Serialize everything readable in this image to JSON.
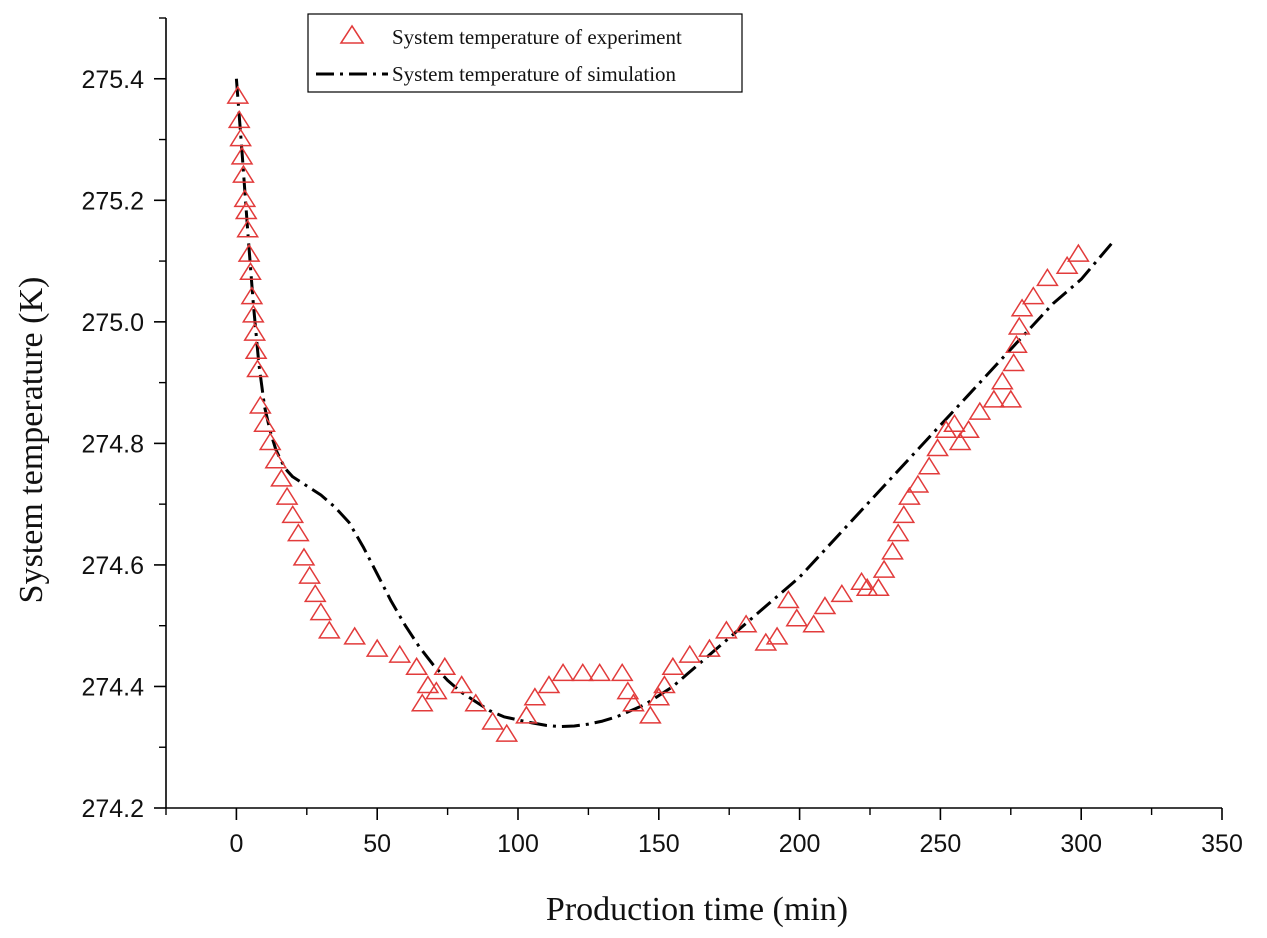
{
  "chart_data": {
    "type": "scatter",
    "title": "",
    "xlabel": "Production time (min)",
    "ylabel": "System temperature (K)",
    "xlim": [
      -25,
      350
    ],
    "ylim": [
      274.2,
      275.5
    ],
    "xticks": [
      0,
      50,
      100,
      150,
      200,
      250,
      300,
      350
    ],
    "yticks": [
      274.2,
      274.4,
      274.6,
      274.8,
      275.0,
      275.2,
      275.4
    ],
    "xtick_labels": [
      "0",
      "50",
      "100",
      "150",
      "200",
      "250",
      "300",
      "350"
    ],
    "ytick_labels": [
      "274.2",
      "274.4",
      "274.6",
      "274.8",
      "275.0",
      "275.2",
      "275.4"
    ],
    "legend_position": "top-center",
    "colors": {
      "experiment": "#e23b3b",
      "simulation": "#000000",
      "axis": "#000000"
    },
    "series": [
      {
        "name": "System temperature of experiment",
        "marker": "triangle-open",
        "color": "#e23b3b",
        "x": [
          0.5,
          1,
          1.5,
          2,
          2.5,
          3,
          3.5,
          4,
          4.5,
          5,
          5.5,
          6,
          6.5,
          7,
          7.5,
          8.5,
          10,
          12,
          14,
          16,
          18,
          20,
          22,
          24,
          26,
          28,
          30,
          33,
          42,
          50,
          58,
          64,
          66,
          68,
          71,
          74,
          80,
          85,
          91,
          96,
          103,
          106,
          111,
          116,
          123,
          129,
          137,
          139,
          141,
          147,
          150,
          152,
          155,
          161,
          168,
          174,
          181,
          188,
          192,
          196,
          199,
          205,
          209,
          215,
          222,
          224,
          228,
          230,
          233,
          235,
          237,
          239,
          242,
          246,
          249,
          252,
          255,
          257,
          260,
          264,
          269,
          272,
          275,
          276,
          277,
          278,
          279,
          283,
          288,
          295,
          299
        ],
        "y": [
          275.37,
          275.33,
          275.3,
          275.27,
          275.24,
          275.2,
          275.18,
          275.15,
          275.11,
          275.08,
          275.04,
          275.01,
          274.98,
          274.95,
          274.92,
          274.86,
          274.83,
          274.8,
          274.77,
          274.74,
          274.71,
          274.68,
          274.65,
          274.61,
          274.58,
          274.55,
          274.52,
          274.49,
          274.48,
          274.46,
          274.45,
          274.43,
          274.37,
          274.4,
          274.39,
          274.43,
          274.4,
          274.37,
          274.34,
          274.32,
          274.35,
          274.38,
          274.4,
          274.42,
          274.42,
          274.42,
          274.42,
          274.39,
          274.37,
          274.35,
          274.38,
          274.4,
          274.43,
          274.45,
          274.46,
          274.49,
          274.5,
          274.47,
          274.48,
          274.54,
          274.51,
          274.5,
          274.53,
          274.55,
          274.57,
          274.56,
          274.56,
          274.59,
          274.62,
          274.65,
          274.68,
          274.71,
          274.73,
          274.76,
          274.79,
          274.82,
          274.83,
          274.8,
          274.82,
          274.85,
          274.87,
          274.9,
          274.87,
          274.93,
          274.96,
          274.99,
          275.02,
          275.04,
          275.07,
          275.09,
          275.11
        ]
      },
      {
        "name": "System temperature of simulation",
        "style": "dash-dot",
        "color": "#000000",
        "x": [
          0,
          2,
          4,
          6,
          8,
          10,
          12,
          14,
          16,
          18,
          20,
          25,
          30,
          35,
          40,
          45,
          50,
          55,
          60,
          65,
          70,
          75,
          80,
          85,
          90,
          95,
          100,
          105,
          110,
          115,
          120,
          125,
          130,
          135,
          140,
          145,
          150,
          155,
          160,
          170,
          180,
          190,
          200,
          210,
          220,
          230,
          240,
          250,
          260,
          270,
          280,
          290,
          300,
          311
        ],
        "y": [
          275.4,
          275.28,
          275.15,
          275.03,
          274.93,
          274.86,
          274.82,
          274.79,
          274.77,
          274.755,
          274.745,
          274.73,
          274.715,
          274.695,
          274.67,
          274.63,
          274.585,
          274.54,
          274.5,
          274.465,
          274.435,
          274.41,
          274.39,
          274.375,
          274.36,
          274.35,
          274.345,
          274.34,
          274.336,
          274.334,
          274.335,
          274.338,
          274.343,
          274.35,
          274.36,
          274.37,
          274.385,
          274.4,
          274.42,
          274.46,
          274.5,
          274.54,
          274.58,
          274.63,
          274.68,
          274.73,
          274.78,
          274.83,
          274.88,
          274.93,
          274.98,
          275.03,
          275.07,
          275.13
        ]
      }
    ]
  }
}
